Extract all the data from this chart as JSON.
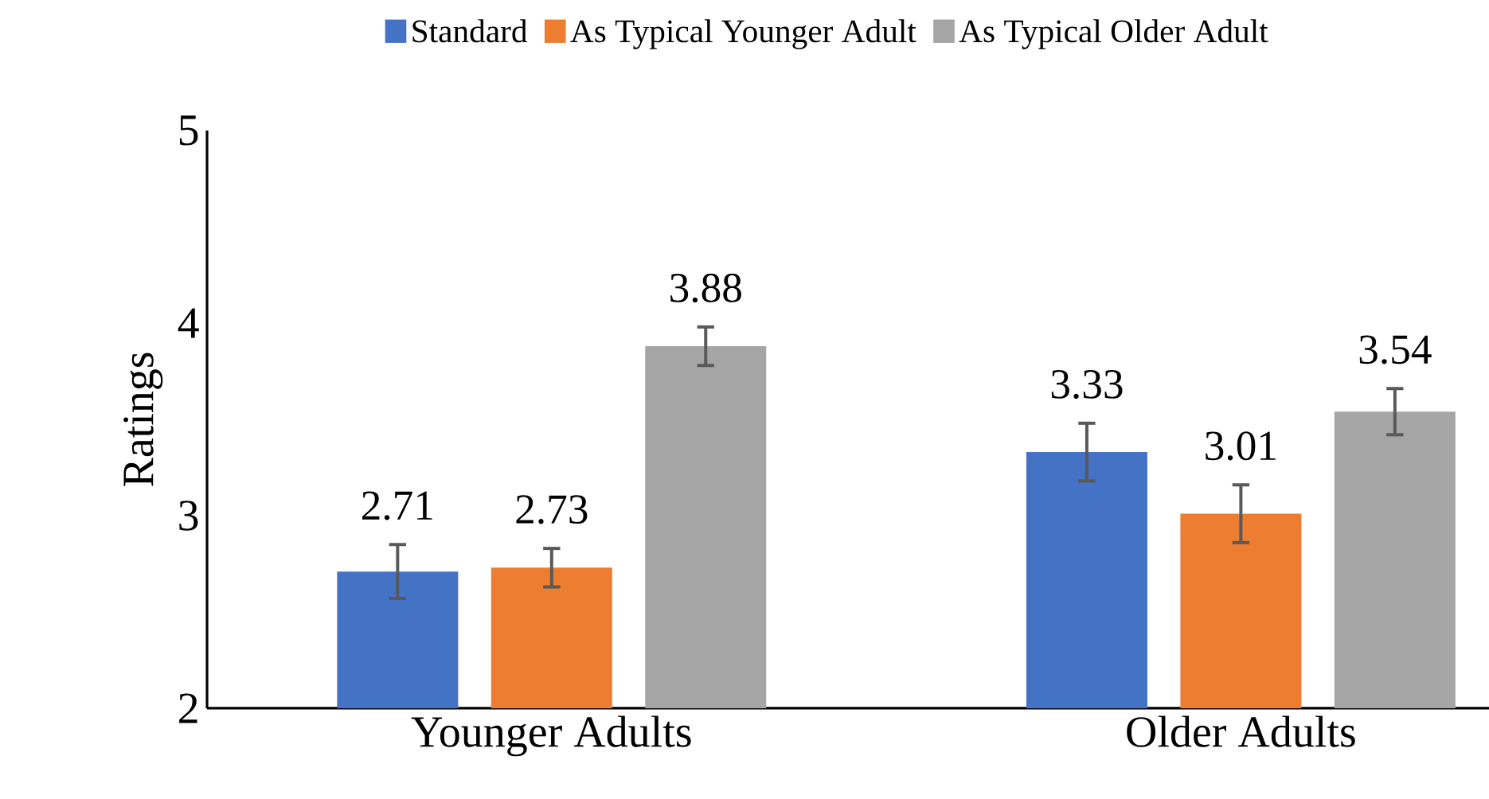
{
  "chart_data": {
    "type": "bar",
    "ylabel": "Ratings",
    "categories": [
      "Younger Adults",
      "Older Adults"
    ],
    "series": [
      {
        "name": "Standard",
        "color": "#4472c4",
        "values": [
          2.71,
          3.33
        ],
        "errors": [
          0.14,
          0.15
        ]
      },
      {
        "name": "As Typical Younger Adult",
        "color": "#ed7d31",
        "values": [
          2.73,
          3.01
        ],
        "errors": [
          0.1,
          0.15
        ]
      },
      {
        "name": "As Typical Older Adult",
        "color": "#a5a5a5",
        "values": [
          3.88,
          3.54
        ],
        "errors": [
          0.1,
          0.12
        ]
      }
    ],
    "ylim": [
      2,
      5
    ],
    "yticks": [
      2,
      3,
      4,
      5
    ],
    "data_labels": true,
    "legend": "top",
    "grid": false
  }
}
